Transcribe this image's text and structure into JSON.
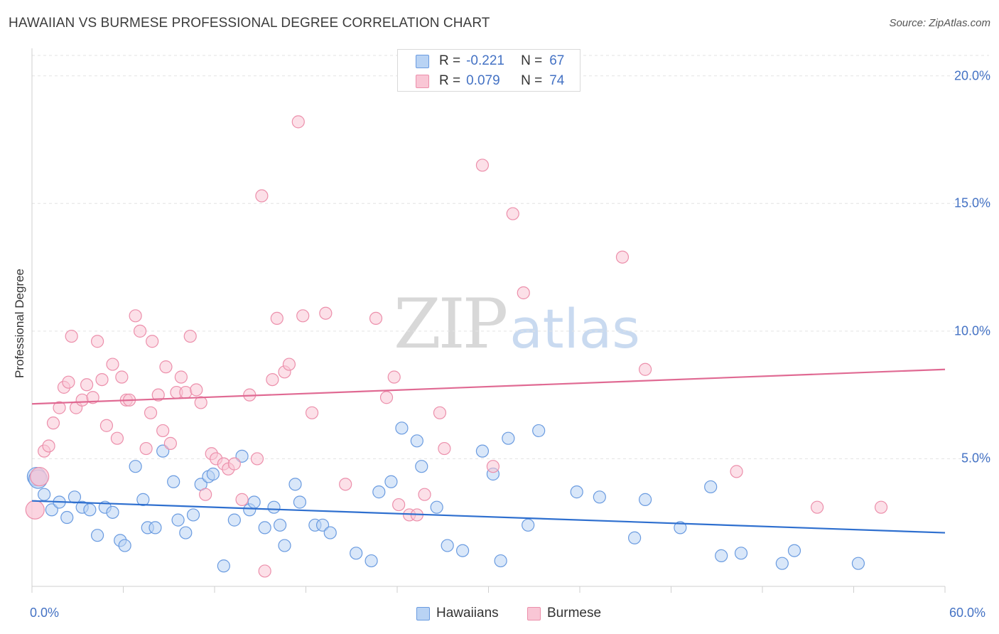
{
  "title": "HAWAIIAN VS BURMESE PROFESSIONAL DEGREE CORRELATION CHART",
  "source": "Source: ZipAtlas.com",
  "watermark": {
    "zip": "ZIP",
    "atlas": "atlas"
  },
  "colors": {
    "hawaiians_fill": "#b9d3f4",
    "hawaiians_stroke": "#6a9be0",
    "hawaiians_line": "#2e6fcf",
    "burmese_fill": "#f9c6d5",
    "burmese_stroke": "#ec8fab",
    "burmese_line": "#e06a93",
    "tick_text": "#4472c4",
    "grid": "#e3e3e3"
  },
  "stats": {
    "hawaiians": {
      "r_label": "R =",
      "r_value": "-0.221",
      "n_label": "N =",
      "n_value": "67"
    },
    "burmese": {
      "r_label": "R =",
      "r_value": "0.079",
      "n_label": "N =",
      "n_value": "74"
    }
  },
  "legend": {
    "hawaiians": "Hawaiians",
    "burmese": "Burmese"
  },
  "chart_data": {
    "type": "scatter",
    "ylabel": "Professional Degree",
    "xlim": [
      0,
      60
    ],
    "ylim": [
      0,
      20.8
    ],
    "x_tick_labels": [
      "0.0%",
      "60.0%"
    ],
    "y_ticks": [
      5,
      10,
      15,
      20
    ],
    "y_tick_labels": [
      "5.0%",
      "10.0%",
      "15.0%",
      "20.0%"
    ],
    "grid": "horizontal dashed",
    "legend_position": "bottom-center",
    "series": [
      {
        "name": "Hawaiians",
        "trend": {
          "x": [
            0,
            60
          ],
          "y": [
            3.35,
            2.1
          ]
        },
        "points": [
          [
            0.3,
            4.3
          ],
          [
            0.4,
            4.2
          ],
          [
            0.8,
            3.6
          ],
          [
            1.3,
            3.0
          ],
          [
            1.8,
            3.3
          ],
          [
            2.3,
            2.7
          ],
          [
            2.8,
            3.5
          ],
          [
            3.3,
            3.1
          ],
          [
            3.8,
            3.0
          ],
          [
            4.3,
            2.0
          ],
          [
            4.8,
            3.1
          ],
          [
            5.3,
            2.9
          ],
          [
            5.8,
            1.8
          ],
          [
            6.1,
            1.6
          ],
          [
            6.8,
            4.7
          ],
          [
            7.3,
            3.4
          ],
          [
            7.6,
            2.3
          ],
          [
            8.1,
            2.3
          ],
          [
            8.6,
            5.3
          ],
          [
            9.3,
            4.1
          ],
          [
            9.6,
            2.6
          ],
          [
            10.1,
            2.1
          ],
          [
            10.6,
            2.8
          ],
          [
            11.1,
            4.0
          ],
          [
            11.6,
            4.3
          ],
          [
            11.9,
            4.4
          ],
          [
            12.6,
            0.8
          ],
          [
            13.3,
            2.6
          ],
          [
            13.8,
            5.1
          ],
          [
            14.3,
            3.0
          ],
          [
            14.6,
            3.3
          ],
          [
            15.3,
            2.3
          ],
          [
            15.9,
            3.1
          ],
          [
            16.3,
            2.4
          ],
          [
            16.6,
            1.6
          ],
          [
            17.3,
            4.0
          ],
          [
            17.6,
            3.3
          ],
          [
            18.6,
            2.4
          ],
          [
            19.1,
            2.4
          ],
          [
            19.6,
            2.1
          ],
          [
            21.3,
            1.3
          ],
          [
            22.3,
            1.0
          ],
          [
            22.8,
            3.7
          ],
          [
            23.6,
            4.1
          ],
          [
            24.3,
            6.2
          ],
          [
            25.3,
            5.7
          ],
          [
            25.6,
            4.7
          ],
          [
            26.6,
            3.1
          ],
          [
            27.3,
            1.6
          ],
          [
            28.3,
            1.4
          ],
          [
            29.6,
            5.3
          ],
          [
            30.3,
            4.4
          ],
          [
            30.8,
            1.0
          ],
          [
            31.3,
            5.8
          ],
          [
            32.6,
            2.4
          ],
          [
            33.3,
            6.1
          ],
          [
            35.8,
            3.7
          ],
          [
            37.3,
            3.5
          ],
          [
            39.6,
            1.9
          ],
          [
            40.3,
            3.4
          ],
          [
            42.6,
            2.3
          ],
          [
            44.6,
            3.9
          ],
          [
            45.3,
            1.2
          ],
          [
            46.6,
            1.3
          ],
          [
            49.3,
            0.9
          ],
          [
            50.1,
            1.4
          ],
          [
            54.3,
            0.9
          ]
        ]
      },
      {
        "name": "Burmese",
        "trend": {
          "x": [
            0,
            60
          ],
          "y": [
            7.15,
            8.5
          ]
        },
        "points": [
          [
            0.2,
            3.0
          ],
          [
            0.5,
            4.3
          ],
          [
            0.8,
            5.3
          ],
          [
            1.1,
            5.5
          ],
          [
            1.4,
            6.4
          ],
          [
            1.8,
            7.0
          ],
          [
            2.1,
            7.8
          ],
          [
            2.4,
            8.0
          ],
          [
            2.6,
            9.8
          ],
          [
            2.9,
            7.0
          ],
          [
            3.3,
            7.3
          ],
          [
            3.6,
            7.9
          ],
          [
            4.0,
            7.4
          ],
          [
            4.3,
            9.6
          ],
          [
            4.6,
            8.1
          ],
          [
            4.9,
            6.3
          ],
          [
            5.3,
            8.7
          ],
          [
            5.6,
            5.8
          ],
          [
            5.9,
            8.2
          ],
          [
            6.2,
            7.3
          ],
          [
            6.4,
            7.3
          ],
          [
            6.8,
            10.6
          ],
          [
            7.1,
            10.0
          ],
          [
            7.5,
            5.4
          ],
          [
            7.8,
            6.8
          ],
          [
            7.9,
            9.6
          ],
          [
            8.3,
            7.5
          ],
          [
            8.6,
            6.1
          ],
          [
            8.8,
            8.6
          ],
          [
            9.1,
            5.6
          ],
          [
            9.5,
            7.6
          ],
          [
            9.8,
            8.2
          ],
          [
            10.1,
            7.6
          ],
          [
            10.4,
            9.8
          ],
          [
            10.8,
            7.7
          ],
          [
            11.1,
            7.2
          ],
          [
            11.4,
            3.6
          ],
          [
            11.8,
            5.2
          ],
          [
            12.1,
            5.0
          ],
          [
            12.6,
            4.8
          ],
          [
            12.9,
            4.6
          ],
          [
            13.3,
            4.8
          ],
          [
            13.8,
            3.4
          ],
          [
            14.3,
            7.5
          ],
          [
            14.8,
            5.0
          ],
          [
            15.1,
            15.3
          ],
          [
            15.3,
            0.6
          ],
          [
            15.8,
            8.1
          ],
          [
            16.1,
            10.5
          ],
          [
            16.6,
            8.4
          ],
          [
            16.9,
            8.7
          ],
          [
            17.5,
            18.2
          ],
          [
            17.8,
            10.6
          ],
          [
            18.4,
            6.8
          ],
          [
            19.3,
            10.7
          ],
          [
            20.6,
            4.0
          ],
          [
            22.6,
            10.5
          ],
          [
            23.3,
            7.4
          ],
          [
            23.8,
            8.2
          ],
          [
            24.1,
            3.2
          ],
          [
            24.8,
            2.8
          ],
          [
            25.3,
            2.8
          ],
          [
            25.8,
            3.6
          ],
          [
            26.8,
            6.8
          ],
          [
            27.1,
            5.4
          ],
          [
            29.6,
            16.5
          ],
          [
            30.3,
            4.7
          ],
          [
            31.6,
            14.6
          ],
          [
            32.3,
            11.5
          ],
          [
            38.8,
            12.9
          ],
          [
            40.3,
            8.5
          ],
          [
            46.3,
            4.5
          ],
          [
            51.6,
            3.1
          ],
          [
            55.8,
            3.1
          ]
        ]
      }
    ]
  }
}
